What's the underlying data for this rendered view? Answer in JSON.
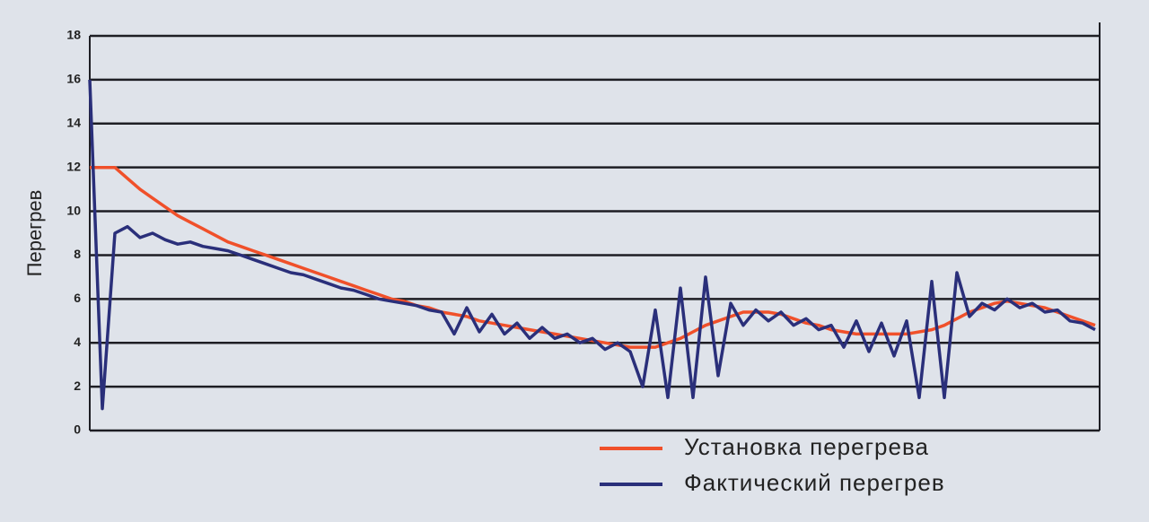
{
  "chart_data": {
    "type": "line",
    "y_label": "Перегрев",
    "categories": [
      null,
      null,
      null,
      null,
      null,
      null,
      null,
      null,
      null,
      null,
      null,
      null,
      null,
      null,
      null,
      null,
      null,
      null,
      null,
      null,
      null,
      null,
      null,
      null,
      null,
      null,
      null,
      null,
      null,
      null,
      null,
      null,
      null,
      null,
      null,
      null,
      null,
      null,
      null,
      null,
      null,
      null,
      null,
      null,
      null,
      null,
      null,
      null,
      null,
      null,
      null,
      null,
      null,
      null,
      null,
      null,
      null,
      null,
      null,
      null,
      null,
      null,
      null,
      null,
      null,
      null,
      null,
      null,
      null,
      null,
      null,
      null,
      null,
      null,
      null,
      null,
      null,
      null,
      null,
      null,
      null
    ],
    "series": [
      {
        "name": "Установка перегрева",
        "color": "#f0502a",
        "values": [
          12,
          12,
          12,
          11.5,
          11.0,
          10.6,
          10.2,
          9.8,
          9.5,
          9.2,
          8.9,
          8.6,
          8.4,
          8.2,
          8.0,
          7.8,
          7.6,
          7.4,
          7.2,
          7.0,
          6.8,
          6.6,
          6.4,
          6.2,
          6.0,
          5.9,
          5.7,
          5.6,
          5.4,
          5.3,
          5.2,
          5.0,
          4.9,
          4.8,
          4.7,
          4.6,
          4.5,
          4.4,
          4.3,
          4.2,
          4.1,
          4.0,
          3.9,
          3.8,
          3.8,
          3.8,
          4.0,
          4.2,
          4.5,
          4.8,
          5.0,
          5.2,
          5.4,
          5.4,
          5.4,
          5.3,
          5.1,
          4.9,
          4.8,
          4.6,
          4.5,
          4.4,
          4.4,
          4.4,
          4.4,
          4.4,
          4.5,
          4.6,
          4.8,
          5.1,
          5.4,
          5.6,
          5.8,
          5.9,
          5.8,
          5.7,
          5.6,
          5.4,
          5.2,
          5.0,
          4.8
        ]
      },
      {
        "name": "Фактический перегрев",
        "color": "#2a2f7a",
        "values": [
          16,
          1,
          9,
          9.3,
          8.8,
          9.0,
          8.7,
          8.5,
          8.6,
          8.4,
          8.3,
          8.2,
          8.0,
          7.8,
          7.6,
          7.4,
          7.2,
          7.1,
          6.9,
          6.7,
          6.5,
          6.4,
          6.2,
          6.0,
          5.9,
          5.8,
          5.7,
          5.5,
          5.4,
          4.4,
          5.6,
          4.5,
          5.3,
          4.4,
          4.9,
          4.2,
          4.7,
          4.2,
          4.4,
          4.0,
          4.2,
          3.7,
          4.0,
          3.6,
          2.0,
          5.5,
          1.5,
          6.5,
          1.5,
          7.0,
          2.5,
          5.8,
          4.8,
          5.5,
          5.0,
          5.4,
          4.8,
          5.1,
          4.6,
          4.8,
          3.8,
          5.0,
          3.6,
          4.9,
          3.4,
          5.0,
          1.5,
          6.8,
          1.5,
          7.2,
          5.2,
          5.8,
          5.5,
          6.0,
          5.6,
          5.8,
          5.4,
          5.5,
          5.0,
          4.9,
          4.6
        ]
      }
    ],
    "ylim": [
      0,
      18
    ],
    "yticks": [
      0,
      2,
      4,
      6,
      8,
      10,
      12,
      14,
      16,
      18
    ],
    "grid": true
  }
}
